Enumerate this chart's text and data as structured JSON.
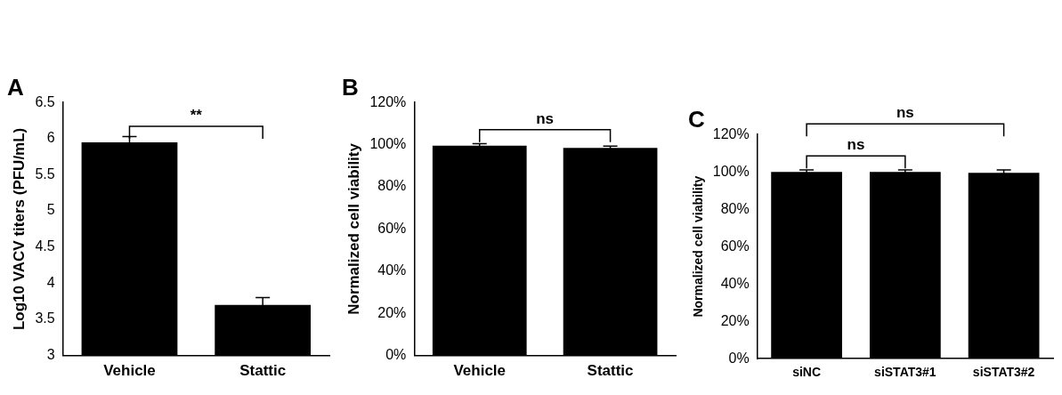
{
  "chart_data": [
    {
      "type": "bar",
      "title": "A",
      "ylabel": "Log10 VACV titers (PFU/mL)",
      "categories": [
        "Vehicle",
        "Stattic"
      ],
      "series": [
        {
          "color": "#000000",
          "values": [
            5.95,
            3.7
          ],
          "errors": [
            0.08,
            0.1
          ]
        }
      ],
      "ylim": [
        3,
        6.5
      ],
      "yticks": [
        3,
        3.5,
        4,
        4.5,
        5,
        5.5,
        6,
        6.5
      ],
      "annotations": [
        "**"
      ]
    },
    {
      "type": "bar",
      "title": "B",
      "ylabel": "Normalized cell viability",
      "categories": [
        "Vehicle",
        "Stattic"
      ],
      "series": [
        {
          "color": "#000000",
          "values": [
            99.5,
            98.5
          ],
          "errors": [
            1,
            0.8
          ]
        }
      ],
      "ylim": [
        0,
        120
      ],
      "yticks": [
        {
          "value": 0,
          "label": "0%"
        },
        {
          "value": 20,
          "label": "20%"
        },
        {
          "value": 40,
          "label": "40%"
        },
        {
          "value": 60,
          "label": "60%"
        },
        {
          "value": 80,
          "label": "80%"
        },
        {
          "value": 100,
          "label": "100%"
        },
        {
          "value": 120,
          "label": "120%"
        }
      ],
      "annotations": [
        "ns"
      ]
    },
    {
      "type": "bar",
      "title": "C",
      "ylabel": "Normalized cell viability",
      "categories": [
        "siNC",
        "siSTAT3#1",
        "siSTAT3#2"
      ],
      "series": [
        {
          "color": "#000000",
          "values": [
            100,
            100,
            99.5
          ],
          "errors": [
            1,
            1,
            1.5
          ]
        }
      ],
      "ylim": [
        0,
        120
      ],
      "yticks": [
        {
          "value": 0,
          "label": "0%"
        },
        {
          "value": 20,
          "label": "20%"
        },
        {
          "value": 40,
          "label": "40%"
        },
        {
          "value": 60,
          "label": "60%"
        },
        {
          "value": 80,
          "label": "80%"
        },
        {
          "value": 100,
          "label": "100%"
        },
        {
          "value": 120,
          "label": "120%"
        }
      ],
      "annotations": [
        "ns",
        "ns"
      ]
    }
  ]
}
